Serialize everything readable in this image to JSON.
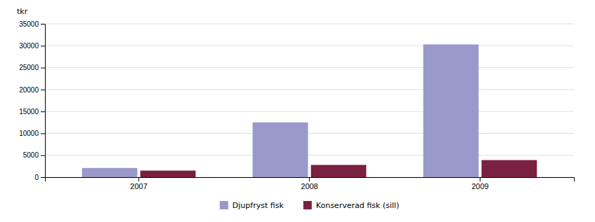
{
  "chart_data": {
    "type": "bar",
    "ylabel": "tkr",
    "categories": [
      "2007",
      "2008",
      "2009"
    ],
    "series": [
      {
        "name": "Djupfryst fisk",
        "color": "#9999cc",
        "values": [
          2100,
          12500,
          30300
        ]
      },
      {
        "name": "Konserverad fisk (sill)",
        "color": "#7a2040",
        "values": [
          1500,
          2800,
          3900
        ]
      }
    ],
    "ylim": [
      0,
      35000
    ],
    "yticks": [
      0,
      5000,
      10000,
      15000,
      20000,
      25000,
      30000,
      35000
    ],
    "grid": true,
    "legend": "bottom"
  }
}
